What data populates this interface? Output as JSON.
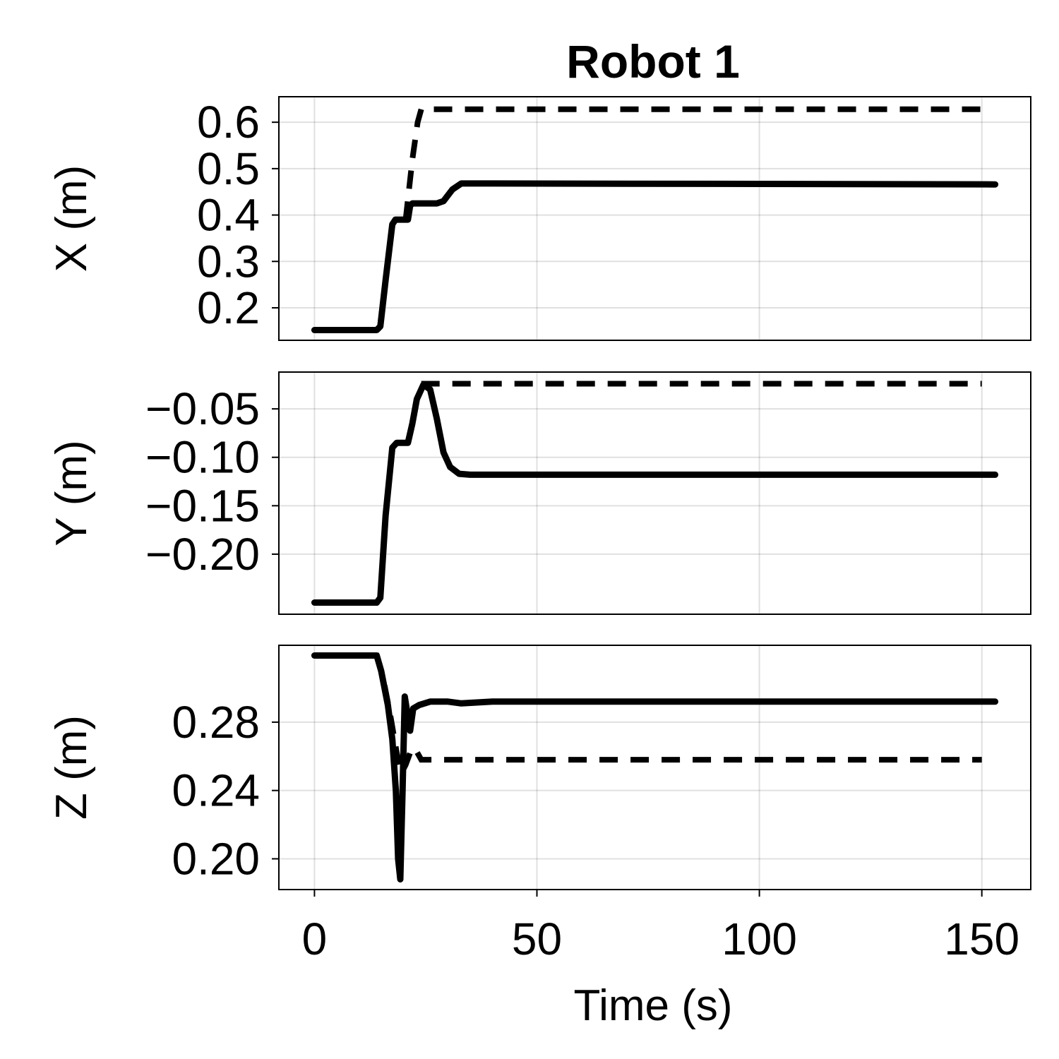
{
  "chart_data": {
    "type": "line",
    "title": "Robot 1",
    "xlabel": "Time (s)",
    "xlim": [
      -8,
      161
    ],
    "xticks": [
      0,
      50,
      100,
      150
    ],
    "xtick_labels": [
      "0",
      "50",
      "100",
      "150"
    ],
    "grid": true,
    "line_styles": {
      "measured": "solid",
      "reference": "dashed"
    },
    "color": "#000000",
    "panels": [
      {
        "key": "x",
        "ylabel": "X (m)",
        "ylim": [
          0.13,
          0.655
        ],
        "yticks": [
          0.2,
          0.3,
          0.4,
          0.5,
          0.6
        ],
        "ytick_labels": [
          "0.2",
          "0.3",
          "0.4",
          "0.5",
          "0.6"
        ],
        "series": [
          {
            "style": "solid",
            "x": [
              0,
              14,
              14.8,
              16,
              17.5,
              18.2,
              19,
              21,
              21.5,
              22,
              25,
              27.5,
              29,
              31,
              33,
              40,
              100,
              153
            ],
            "y": [
              0.152,
              0.152,
              0.16,
              0.26,
              0.38,
              0.39,
              0.39,
              0.39,
              0.42,
              0.425,
              0.425,
              0.425,
              0.43,
              0.455,
              0.468,
              0.468,
              0.467,
              0.466
            ]
          },
          {
            "style": "dashed",
            "x": [
              20.5,
              22,
              23.2,
              24,
              150
            ],
            "y": [
              0.39,
              0.52,
              0.6,
              0.628,
              0.628
            ]
          }
        ]
      },
      {
        "key": "y",
        "ylabel": "Y (m)",
        "ylim": [
          -0.262,
          -0.012
        ],
        "yticks": [
          -0.05,
          -0.1,
          -0.15,
          -0.2
        ],
        "ytick_labels": [
          "−0.05",
          "−0.10",
          "−0.15",
          "−0.20"
        ],
        "series": [
          {
            "style": "solid",
            "x": [
              0,
              14,
              14.8,
              16,
              17.5,
              18.5,
              20,
              21,
              22,
              23,
              24.5,
              26,
              27.5,
              29,
              30.5,
              32.5,
              35,
              60,
              100,
              153
            ],
            "y": [
              -0.25,
              -0.25,
              -0.245,
              -0.16,
              -0.09,
              -0.085,
              -0.085,
              -0.085,
              -0.065,
              -0.04,
              -0.025,
              -0.03,
              -0.06,
              -0.095,
              -0.11,
              -0.117,
              -0.118,
              -0.118,
              -0.118,
              -0.118
            ]
          },
          {
            "style": "dashed",
            "x": [
              24,
              150
            ],
            "y": [
              -0.024,
              -0.024
            ]
          }
        ]
      },
      {
        "key": "z",
        "ylabel": "Z (m)",
        "ylim": [
          0.182,
          0.325
        ],
        "yticks": [
          0.2,
          0.24,
          0.28
        ],
        "ytick_labels": [
          "0.20",
          "0.24",
          "0.28"
        ],
        "series": [
          {
            "style": "solid",
            "x": [
              0,
              14,
              15,
              16.5,
              17.5,
              18.3,
              18.8,
              19.3,
              19.8,
              20.3,
              20.9,
              21.5,
              22.2,
              23.5,
              26,
              30,
              33,
              40,
              100,
              153
            ],
            "y": [
              0.319,
              0.319,
              0.31,
              0.29,
              0.27,
              0.24,
              0.2,
              0.188,
              0.24,
              0.295,
              0.285,
              0.275,
              0.288,
              0.29,
              0.292,
              0.292,
              0.291,
              0.292,
              0.292,
              0.292
            ]
          },
          {
            "style": "dashed",
            "x": [
              0,
              14,
              15.5,
              17,
              18.5,
              19.5,
              20.5,
              21.5,
              22.5,
              24,
              150
            ],
            "y": [
              0.319,
              0.319,
              0.305,
              0.285,
              0.262,
              0.25,
              0.255,
              0.262,
              0.265,
              0.258,
              0.258
            ]
          }
        ]
      }
    ]
  }
}
